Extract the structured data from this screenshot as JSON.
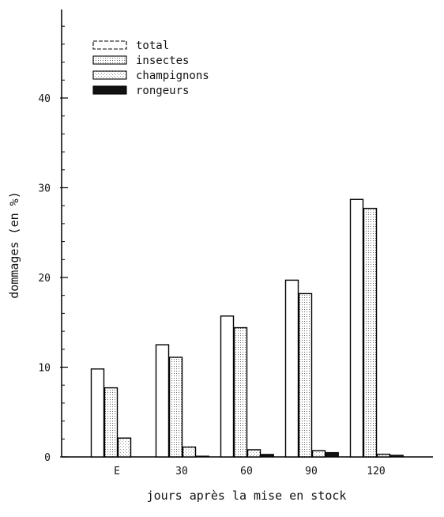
{
  "chart_data": {
    "type": "bar",
    "xlabel": "jours après la mise en stock",
    "ylabel": "dommages (en %)",
    "categories": [
      "E",
      "30",
      "60",
      "90",
      "120"
    ],
    "ylim": [
      0,
      50
    ],
    "yticks": [
      0,
      10,
      20,
      30,
      40
    ],
    "grid": false,
    "legend_position": "top-left",
    "series": [
      {
        "name": "total",
        "pattern": "open",
        "values": [
          9.8,
          12.5,
          15.7,
          19.7,
          28.7
        ]
      },
      {
        "name": "insectes",
        "pattern": "dotted",
        "values": [
          7.7,
          11.1,
          14.4,
          18.2,
          27.7
        ]
      },
      {
        "name": "champignons",
        "pattern": "light",
        "values": [
          2.1,
          1.1,
          0.8,
          0.7,
          0.3
        ]
      },
      {
        "name": "rongeurs",
        "pattern": "solid",
        "values": [
          0.0,
          0.1,
          0.3,
          0.5,
          0.2
        ]
      }
    ]
  }
}
